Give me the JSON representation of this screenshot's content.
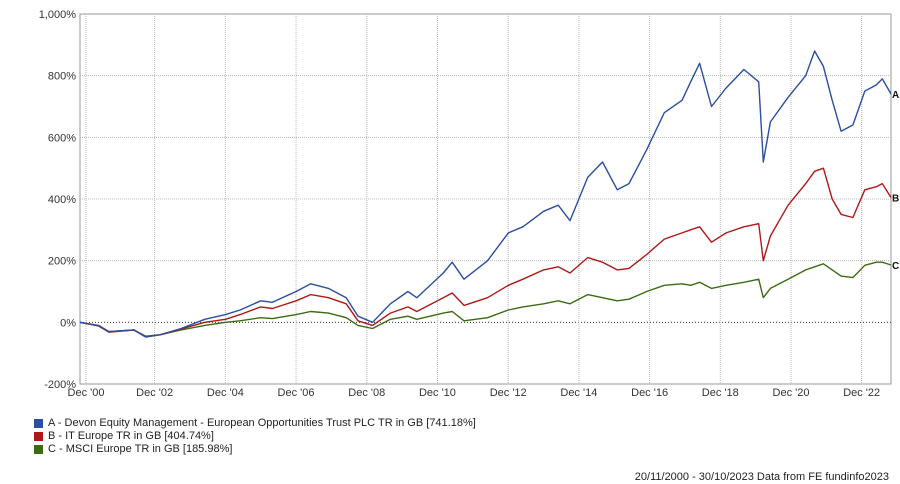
{
  "chart_data": {
    "type": "line",
    "x_ticks": [
      "Dec '00",
      "Dec '02",
      "Dec '04",
      "Dec '06",
      "Dec '08",
      "Dec '10",
      "Dec '12",
      "Dec '14",
      "Dec '16",
      "Dec '18",
      "Dec '20",
      "Dec '22"
    ],
    "y_ticks": [
      "1,000%",
      "800%",
      "600%",
      "400%",
      "200%",
      "0%",
      "-200%"
    ],
    "ylim": [
      -200,
      1000
    ],
    "xlim": [
      "2000-11-20",
      "2023-10-30"
    ],
    "grid": true,
    "series": [
      {
        "name": "A - Devon Equity Management - European Opportunities Trust PLC TR in GB [741.18%]",
        "end_label": "A",
        "color": "#2a4ea0",
        "points": [
          [
            "2000-11-20",
            0
          ],
          [
            "2001-06-01",
            -10
          ],
          [
            "2001-09-15",
            -30
          ],
          [
            "2002-06-01",
            -25
          ],
          [
            "2002-10-01",
            -48
          ],
          [
            "2003-03-01",
            -40
          ],
          [
            "2003-10-01",
            -20
          ],
          [
            "2004-06-01",
            10
          ],
          [
            "2005-01-01",
            25
          ],
          [
            "2005-06-01",
            40
          ],
          [
            "2006-01-01",
            70
          ],
          [
            "2006-05-01",
            65
          ],
          [
            "2007-01-01",
            100
          ],
          [
            "2007-06-01",
            125
          ],
          [
            "2007-12-01",
            110
          ],
          [
            "2008-06-01",
            80
          ],
          [
            "2008-10-01",
            20
          ],
          [
            "2009-03-01",
            0
          ],
          [
            "2009-09-01",
            60
          ],
          [
            "2010-03-01",
            100
          ],
          [
            "2010-06-01",
            80
          ],
          [
            "2011-03-01",
            160
          ],
          [
            "2011-06-01",
            195
          ],
          [
            "2011-10-01",
            140
          ],
          [
            "2012-06-01",
            200
          ],
          [
            "2013-01-01",
            290
          ],
          [
            "2013-06-01",
            310
          ],
          [
            "2014-01-01",
            360
          ],
          [
            "2014-06-01",
            380
          ],
          [
            "2014-10-01",
            330
          ],
          [
            "2015-04-01",
            470
          ],
          [
            "2015-09-01",
            520
          ],
          [
            "2016-02-01",
            430
          ],
          [
            "2016-06-01",
            450
          ],
          [
            "2016-12-01",
            560
          ],
          [
            "2017-06-01",
            680
          ],
          [
            "2017-12-01",
            720
          ],
          [
            "2018-03-01",
            780
          ],
          [
            "2018-06-01",
            840
          ],
          [
            "2018-10-01",
            700
          ],
          [
            "2019-03-01",
            760
          ],
          [
            "2019-09-01",
            820
          ],
          [
            "2020-02-01",
            780
          ],
          [
            "2020-03-20",
            520
          ],
          [
            "2020-06-01",
            650
          ],
          [
            "2020-12-01",
            730
          ],
          [
            "2021-06-01",
            800
          ],
          [
            "2021-09-01",
            880
          ],
          [
            "2021-12-01",
            830
          ],
          [
            "2022-03-01",
            720
          ],
          [
            "2022-06-01",
            620
          ],
          [
            "2022-10-01",
            640
          ],
          [
            "2023-02-01",
            750
          ],
          [
            "2023-06-01",
            770
          ],
          [
            "2023-08-01",
            790
          ],
          [
            "2023-10-30",
            741
          ]
        ]
      },
      {
        "name": "B - IT Europe TR in GB [404.74%]",
        "end_label": "B",
        "color": "#b01818",
        "points": [
          [
            "2000-11-20",
            0
          ],
          [
            "2001-06-01",
            -12
          ],
          [
            "2001-09-15",
            -32
          ],
          [
            "2002-06-01",
            -25
          ],
          [
            "2002-10-01",
            -47
          ],
          [
            "2003-03-01",
            -40
          ],
          [
            "2003-10-01",
            -22
          ],
          [
            "2004-06-01",
            0
          ],
          [
            "2005-01-01",
            10
          ],
          [
            "2005-06-01",
            25
          ],
          [
            "2006-01-01",
            50
          ],
          [
            "2006-05-01",
            45
          ],
          [
            "2007-01-01",
            70
          ],
          [
            "2007-06-01",
            90
          ],
          [
            "2007-12-01",
            80
          ],
          [
            "2008-06-01",
            60
          ],
          [
            "2008-10-01",
            5
          ],
          [
            "2009-03-01",
            -10
          ],
          [
            "2009-09-01",
            30
          ],
          [
            "2010-03-01",
            50
          ],
          [
            "2010-06-01",
            35
          ],
          [
            "2011-03-01",
            80
          ],
          [
            "2011-06-01",
            95
          ],
          [
            "2011-10-01",
            55
          ],
          [
            "2012-06-01",
            80
          ],
          [
            "2013-01-01",
            120
          ],
          [
            "2013-06-01",
            140
          ],
          [
            "2014-01-01",
            170
          ],
          [
            "2014-06-01",
            180
          ],
          [
            "2014-10-01",
            160
          ],
          [
            "2015-04-01",
            210
          ],
          [
            "2015-09-01",
            195
          ],
          [
            "2016-02-01",
            170
          ],
          [
            "2016-06-01",
            175
          ],
          [
            "2016-12-01",
            220
          ],
          [
            "2017-06-01",
            270
          ],
          [
            "2017-12-01",
            290
          ],
          [
            "2018-03-01",
            300
          ],
          [
            "2018-06-01",
            310
          ],
          [
            "2018-10-01",
            260
          ],
          [
            "2019-03-01",
            290
          ],
          [
            "2019-09-01",
            310
          ],
          [
            "2020-02-01",
            320
          ],
          [
            "2020-03-20",
            200
          ],
          [
            "2020-06-01",
            280
          ],
          [
            "2020-12-01",
            380
          ],
          [
            "2021-06-01",
            450
          ],
          [
            "2021-09-01",
            490
          ],
          [
            "2021-12-01",
            500
          ],
          [
            "2022-03-01",
            400
          ],
          [
            "2022-06-01",
            350
          ],
          [
            "2022-10-01",
            340
          ],
          [
            "2023-02-01",
            430
          ],
          [
            "2023-06-01",
            440
          ],
          [
            "2023-08-01",
            450
          ],
          [
            "2023-10-30",
            405
          ]
        ]
      },
      {
        "name": "C - MSCI Europe TR in GB [185.98%]",
        "end_label": "C",
        "color": "#3b6c12",
        "points": [
          [
            "2000-11-20",
            0
          ],
          [
            "2001-06-01",
            -12
          ],
          [
            "2001-09-15",
            -30
          ],
          [
            "2002-06-01",
            -25
          ],
          [
            "2002-10-01",
            -45
          ],
          [
            "2003-03-01",
            -40
          ],
          [
            "2003-10-01",
            -25
          ],
          [
            "2004-06-01",
            -10
          ],
          [
            "2005-01-01",
            0
          ],
          [
            "2005-06-01",
            5
          ],
          [
            "2006-01-01",
            15
          ],
          [
            "2006-05-01",
            12
          ],
          [
            "2007-01-01",
            25
          ],
          [
            "2007-06-01",
            35
          ],
          [
            "2007-12-01",
            30
          ],
          [
            "2008-06-01",
            15
          ],
          [
            "2008-10-01",
            -10
          ],
          [
            "2009-03-01",
            -20
          ],
          [
            "2009-09-01",
            10
          ],
          [
            "2010-03-01",
            20
          ],
          [
            "2010-06-01",
            10
          ],
          [
            "2011-03-01",
            30
          ],
          [
            "2011-06-01",
            35
          ],
          [
            "2011-10-01",
            5
          ],
          [
            "2012-06-01",
            15
          ],
          [
            "2013-01-01",
            40
          ],
          [
            "2013-06-01",
            50
          ],
          [
            "2014-01-01",
            60
          ],
          [
            "2014-06-01",
            70
          ],
          [
            "2014-10-01",
            60
          ],
          [
            "2015-04-01",
            90
          ],
          [
            "2015-09-01",
            80
          ],
          [
            "2016-02-01",
            70
          ],
          [
            "2016-06-01",
            75
          ],
          [
            "2016-12-01",
            100
          ],
          [
            "2017-06-01",
            120
          ],
          [
            "2017-12-01",
            125
          ],
          [
            "2018-03-01",
            120
          ],
          [
            "2018-06-01",
            130
          ],
          [
            "2018-10-01",
            110
          ],
          [
            "2019-03-01",
            120
          ],
          [
            "2019-09-01",
            130
          ],
          [
            "2020-02-01",
            140
          ],
          [
            "2020-03-20",
            80
          ],
          [
            "2020-06-01",
            110
          ],
          [
            "2020-12-01",
            140
          ],
          [
            "2021-06-01",
            170
          ],
          [
            "2021-09-01",
            180
          ],
          [
            "2021-12-01",
            190
          ],
          [
            "2022-03-01",
            170
          ],
          [
            "2022-06-01",
            150
          ],
          [
            "2022-10-01",
            145
          ],
          [
            "2023-02-01",
            185
          ],
          [
            "2023-06-01",
            195
          ],
          [
            "2023-08-01",
            195
          ],
          [
            "2023-10-30",
            186
          ]
        ]
      }
    ]
  },
  "footer": "20/11/2000 - 30/10/2023 Data from FE fundinfo2023"
}
